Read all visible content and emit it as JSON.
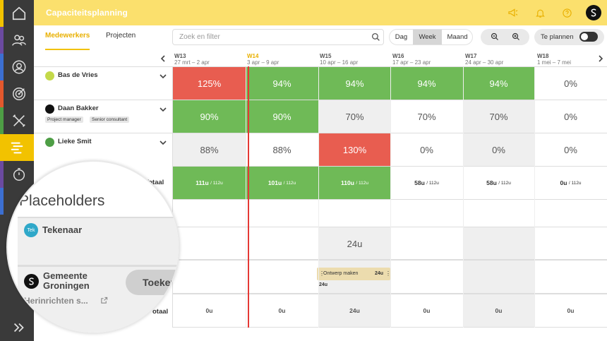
{
  "header": {
    "title": "Capaciteitsplanning"
  },
  "tabs": [
    {
      "label": "Medewerkers"
    },
    {
      "label": "Projecten"
    }
  ],
  "search": {
    "placeholder": "Zoek en filter"
  },
  "view_toggle": [
    "Dag",
    "Week",
    "Maand"
  ],
  "te_plannen": {
    "label": "Te plannen"
  },
  "weeks": [
    {
      "code": "W13",
      "range": "27 mrt – 2 apr"
    },
    {
      "code": "W14",
      "range": "3 apr – 9 apr"
    },
    {
      "code": "W15",
      "range": "10 apr – 16 apr"
    },
    {
      "code": "W16",
      "range": "17 apr – 23 apr"
    },
    {
      "code": "W17",
      "range": "24 apr – 30 apr"
    },
    {
      "code": "W18",
      "range": "1 mei – 7 mei"
    }
  ],
  "people": [
    {
      "name": "Bas de Vries",
      "tags": [],
      "values": [
        "125%",
        "94%",
        "94%",
        "94%",
        "94%",
        "0%"
      ]
    },
    {
      "name": "Daan Bakker",
      "tags": [
        "Project manager",
        "Senior consultant"
      ],
      "values": [
        "90%",
        "90%",
        "70%",
        "70%",
        "70%",
        "0%"
      ]
    },
    {
      "name": "Lieke Smit",
      "tags": [],
      "values": [
        "88%",
        "88%",
        "130%",
        "0%",
        "0%",
        "0%"
      ]
    }
  ],
  "totals": {
    "label": "Totaal",
    "values": [
      "111u",
      "101u",
      "110u",
      "58u",
      "58u",
      "0u"
    ],
    "capacity": "112u"
  },
  "placeholders": {
    "title": "Placeholders",
    "tekenaar": {
      "avatar": "Tek",
      "name": "Tekenaar",
      "w15": "24u"
    },
    "project": {
      "client": "Gemeente Groningen",
      "client_line1": "Gemeente",
      "client_line2": "Groningen",
      "subtitle": "Herinrichten s...",
      "button": "Toeken",
      "task": {
        "name": "Ontwerp maken",
        "hours": "24u",
        "below": "24u"
      }
    },
    "totaal_label": "otaal",
    "totaal_values": [
      "0u",
      "0u",
      "24u",
      "0u",
      "0u",
      "0u"
    ]
  },
  "colors": {
    "brand_yellow": "#fbe06d",
    "over": "#e85d50",
    "ok": "#6fba57",
    "today": "#e53935"
  }
}
